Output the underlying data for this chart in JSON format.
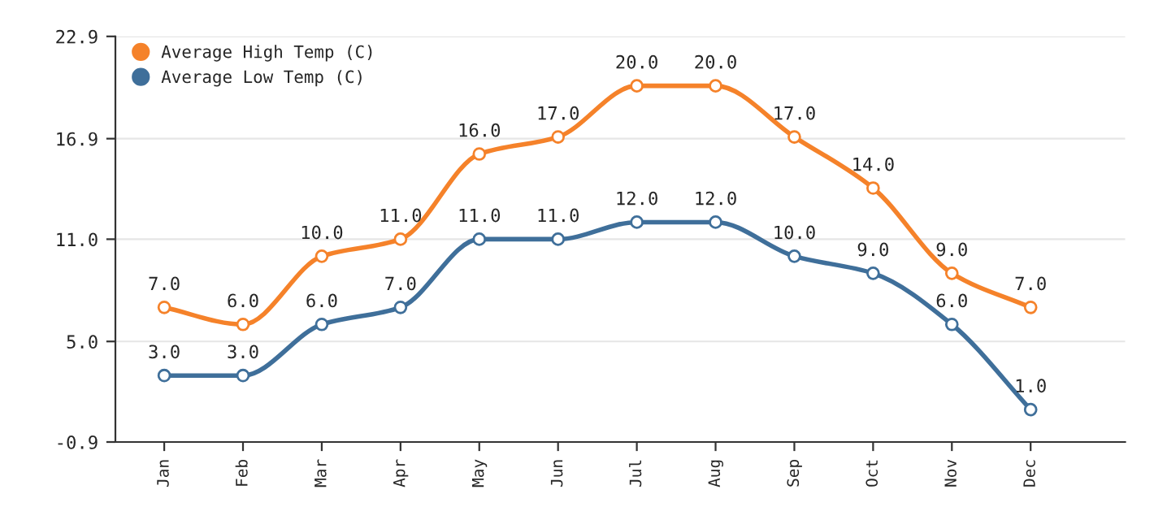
{
  "chart_data": {
    "type": "line",
    "categories": [
      "Jan",
      "Feb",
      "Mar",
      "Apr",
      "May",
      "Jun",
      "Jul",
      "Aug",
      "Sep",
      "Oct",
      "Nov",
      "Dec"
    ],
    "series": [
      {
        "name": "Average High Temp (C)",
        "color": "#f5822a",
        "values": [
          7,
          6,
          10,
          11,
          16,
          17,
          20,
          20,
          17,
          14,
          9,
          7
        ],
        "value_labels": [
          "7.0",
          "6.0",
          "10.0",
          "11.0",
          "16.0",
          "17.0",
          "20.0",
          "20.0",
          "17.0",
          "14.0",
          "9.0",
          "7.0"
        ]
      },
      {
        "name": "Average Low Temp (C)",
        "color": "#3f6f9a",
        "values": [
          3,
          3,
          6,
          7,
          11,
          11,
          12,
          12,
          10,
          9,
          6,
          1
        ],
        "value_labels": [
          "3.0",
          "3.0",
          "6.0",
          "7.0",
          "11.0",
          "11.0",
          "12.0",
          "12.0",
          "10.0",
          "9.0",
          "6.0",
          "1.0"
        ]
      }
    ],
    "ylim": [
      -0.9,
      22.9
    ],
    "yticks": [
      -0.9,
      {
        "value": 5,
        "label": "5.0"
      },
      {
        "value": 11,
        "label": "11.0"
      },
      16.9,
      22.9
    ],
    "grid": "y",
    "legend": "top left",
    "marker": "circle",
    "line_style": "solid"
  }
}
